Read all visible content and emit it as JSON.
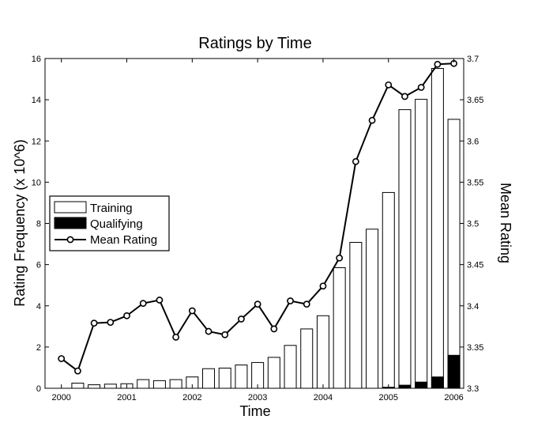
{
  "chart_data": {
    "type": "bar",
    "title": "Ratings by Time",
    "xlabel": "Time",
    "ylabel": "Rating Frequency (x 10^6)",
    "y2label": "Mean Rating",
    "ylim": [
      0,
      16
    ],
    "y2lim": [
      3.3,
      3.7
    ],
    "xlim": [
      1999.75,
      2006.15
    ],
    "yticks": [
      "0",
      "2",
      "4",
      "6",
      "8",
      "10",
      "12",
      "14",
      "16"
    ],
    "y2ticks": [
      "3.3",
      "3.35",
      "3.4",
      "3.45",
      "3.5",
      "3.55",
      "3.6",
      "3.65",
      "3.7"
    ],
    "xticks": [
      "2000",
      "2001",
      "2002",
      "2003",
      "2004",
      "2005",
      "2006"
    ],
    "legend_position": "left",
    "grid": false,
    "x": [
      2000.0,
      2000.25,
      2000.5,
      2000.75,
      2001.0,
      2001.25,
      2001.5,
      2001.75,
      2002.0,
      2002.25,
      2002.5,
      2002.75,
      2003.0,
      2003.25,
      2003.5,
      2003.75,
      2004.0,
      2004.25,
      2004.5,
      2004.75,
      2005.0,
      2005.25,
      2005.5,
      2005.75,
      2006.0
    ],
    "series": [
      {
        "name": "Training",
        "kind": "bar",
        "color": "#ffffff",
        "values": [
          0.0,
          0.25,
          0.17,
          0.2,
          0.22,
          0.42,
          0.37,
          0.42,
          0.55,
          0.95,
          0.98,
          1.13,
          1.25,
          1.5,
          2.08,
          2.88,
          3.52,
          5.85,
          7.08,
          7.72,
          9.5,
          13.52,
          14.02,
          15.52,
          13.05
        ]
      },
      {
        "name": "Qualifying",
        "kind": "bar",
        "color": "#000000",
        "values": [
          0,
          0,
          0,
          0,
          0,
          0,
          0,
          0,
          0,
          0,
          0,
          0,
          0,
          0,
          0,
          0,
          0,
          0,
          0,
          0,
          0.05,
          0.15,
          0.3,
          0.55,
          1.6
        ]
      },
      {
        "name": "Mean Rating",
        "kind": "line",
        "axis": "right",
        "color": "#000000",
        "values": [
          3.336,
          3.321,
          3.379,
          3.38,
          3.388,
          3.403,
          3.407,
          3.362,
          3.394,
          3.369,
          3.365,
          3.384,
          3.402,
          3.372,
          3.406,
          3.402,
          3.424,
          3.458,
          3.575,
          3.625,
          3.668,
          3.654,
          3.665,
          3.693,
          3.694
        ]
      }
    ]
  }
}
